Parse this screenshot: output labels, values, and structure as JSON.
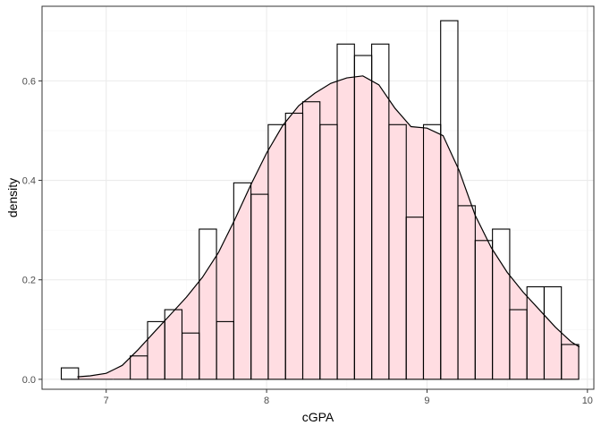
{
  "chart_data": {
    "type": "histogram_density",
    "title": "",
    "xlabel": "cGPA",
    "ylabel": "density",
    "xlim": [
      6.6,
      10.04
    ],
    "ylim": [
      -0.02,
      0.75
    ],
    "x_ticks": [
      7,
      8,
      9,
      10
    ],
    "y_ticks": [
      0.0,
      0.2,
      0.4,
      0.6
    ],
    "x_tick_labels": [
      "7",
      "8",
      "9",
      "10"
    ],
    "y_tick_labels": [
      "0.0",
      "0.2",
      "0.4",
      "0.6"
    ],
    "grid": true,
    "bin_width": 0.1075,
    "histogram": {
      "bin_starts": [
        6.72,
        6.828,
        6.935,
        7.043,
        7.15,
        7.258,
        7.365,
        7.473,
        7.58,
        7.688,
        7.795,
        7.903,
        8.01,
        8.118,
        8.225,
        8.333,
        8.44,
        8.548,
        8.655,
        8.763,
        8.87,
        8.978,
        9.085,
        9.193,
        9.3,
        9.408,
        9.515,
        9.623,
        9.73,
        9.838
      ],
      "densities": [
        0.023,
        0.0,
        0.0,
        0.0,
        0.047,
        0.116,
        0.14,
        0.093,
        0.302,
        0.116,
        0.395,
        0.372,
        0.512,
        0.535,
        0.558,
        0.512,
        0.674,
        0.651,
        0.674,
        0.512,
        0.326,
        0.512,
        0.721,
        0.349,
        0.279,
        0.302,
        0.14,
        0.186,
        0.186,
        0.07
      ],
      "outline_color": "#000000",
      "fill": "none"
    },
    "density_curve": {
      "x": [
        6.82,
        6.9,
        7.0,
        7.1,
        7.2,
        7.3,
        7.4,
        7.5,
        7.6,
        7.7,
        7.8,
        7.9,
        8.0,
        8.1,
        8.2,
        8.3,
        8.4,
        8.5,
        8.6,
        8.7,
        8.8,
        8.9,
        9.0,
        9.1,
        9.2,
        9.3,
        9.4,
        9.5,
        9.6,
        9.7,
        9.8,
        9.9,
        9.95
      ],
      "y": [
        0.005,
        0.007,
        0.012,
        0.028,
        0.06,
        0.095,
        0.13,
        0.165,
        0.205,
        0.255,
        0.32,
        0.39,
        0.455,
        0.51,
        0.55,
        0.575,
        0.595,
        0.606,
        0.61,
        0.592,
        0.545,
        0.508,
        0.505,
        0.49,
        0.42,
        0.33,
        0.265,
        0.215,
        0.175,
        0.14,
        0.105,
        0.075,
        0.065
      ],
      "fill_color": "#ffdde2",
      "line_color": "#000000"
    },
    "colors": {
      "panel_border": "#333333",
      "grid_major": "#ebebeb",
      "grid_minor": "#f5f5f5",
      "tick_text": "#4d4d4d"
    }
  }
}
